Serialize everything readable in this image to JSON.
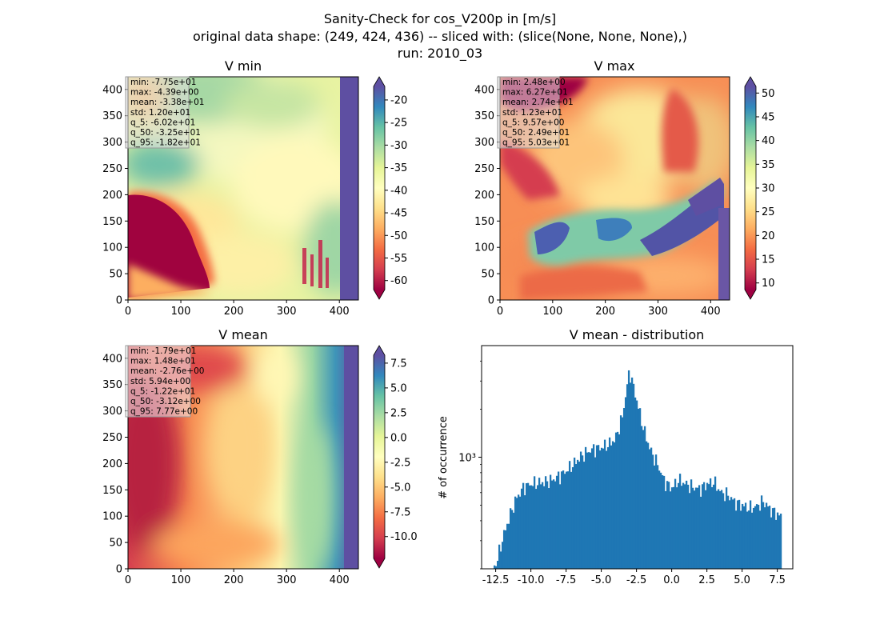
{
  "figure": {
    "title_lines": [
      "Sanity-Check for cos_V200p in [m/s]",
      "original data shape: (249, 424, 436) -- sliced with: (slice(None, None, None),)",
      "run: 2010_03"
    ]
  },
  "chart_data": [
    {
      "type": "heatmap",
      "title": "V min",
      "xlim": [
        0,
        436
      ],
      "ylim": [
        0,
        424
      ],
      "xticks": [
        "0",
        "100",
        "200",
        "300",
        "400"
      ],
      "yticks": [
        "0",
        "50",
        "100",
        "150",
        "200",
        "250",
        "300",
        "350",
        "400"
      ],
      "colormap": "Spectral",
      "colorbar": {
        "min": -62,
        "max": -17,
        "ticks": [
          "-60",
          "-55",
          "-50",
          "-45",
          "-40",
          "-35",
          "-30",
          "-25",
          "-20"
        ],
        "extend": "both"
      },
      "stats": [
        "min: -7.75e+01",
        "max: -4.39e+00",
        "mean: -3.38e+01",
        "std: 1.20e+01",
        "q_5: -6.02e+01",
        "q_50: -3.25e+01",
        "q_95: -1.82e+01"
      ]
    },
    {
      "type": "heatmap",
      "title": "V max",
      "xlim": [
        0,
        436
      ],
      "ylim": [
        0,
        424
      ],
      "xticks": [
        "0",
        "100",
        "200",
        "300",
        "400"
      ],
      "yticks": [
        "0",
        "50",
        "100",
        "150",
        "200",
        "250",
        "300",
        "350",
        "400"
      ],
      "colormap": "Spectral",
      "colorbar": {
        "min": 8.6,
        "max": 51.4,
        "ticks": [
          "10",
          "15",
          "20",
          "25",
          "30",
          "35",
          "40",
          "45",
          "50"
        ],
        "extend": "both"
      },
      "stats": [
        "min: 2.48e+00",
        "max: 6.27e+01",
        "mean: 2.74e+01",
        "std: 1.23e+01",
        "q_5: 9.57e+00",
        "q_50: 2.49e+01",
        "q_95: 5.03e+01"
      ]
    },
    {
      "type": "heatmap",
      "title": "V mean",
      "xlim": [
        0,
        436
      ],
      "ylim": [
        0,
        424
      ],
      "xticks": [
        "0",
        "100",
        "200",
        "300",
        "400"
      ],
      "yticks": [
        "0",
        "50",
        "100",
        "150",
        "200",
        "250",
        "300",
        "350",
        "400"
      ],
      "colormap": "Spectral",
      "colorbar": {
        "min": -12.2,
        "max": 8.3,
        "ticks": [
          "7.5",
          "5.0",
          "2.5",
          "0.0",
          "-2.5",
          "-5.0",
          "-7.5",
          "-10.0"
        ],
        "tick_values": [
          7.5,
          5.0,
          2.5,
          0.0,
          -2.5,
          -5.0,
          -7.5,
          -10.0
        ],
        "extend": "both"
      },
      "stats": [
        "min: -1.79e+01",
        "max: 1.48e+01",
        "mean: -2.76e+00",
        "std: 5.94e+00",
        "q_5: -1.22e+01",
        "q_50: -3.12e+00",
        "q_95: 7.77e+00"
      ]
    },
    {
      "type": "bar",
      "title": "V mean - distribution",
      "ylabel": "# of occurrence",
      "yscale": "log",
      "ylim": [
        200,
        5000
      ],
      "xlim": [
        -13.5,
        8.6
      ],
      "xticks": [
        "-12.5",
        "-10.0",
        "-7.5",
        "-5.0",
        "-2.5",
        "0.0",
        "2.5",
        "5.0",
        "7.5"
      ],
      "xtick_values": [
        -12.5,
        -10.0,
        -7.5,
        -5.0,
        -2.5,
        0.0,
        2.5,
        5.0,
        7.5
      ],
      "ytick_labels": [
        {
          "value": 1000,
          "label": "10³"
        }
      ],
      "bar_color": "#1f77b4",
      "x": [
        -12.5,
        -12.0,
        -11.5,
        -11.0,
        -10.5,
        -10.0,
        -9.5,
        -9.0,
        -8.5,
        -8.0,
        -7.5,
        -7.0,
        -6.5,
        -6.0,
        -5.5,
        -5.0,
        -4.5,
        -4.0,
        -3.5,
        -3.0,
        -2.5,
        -2.0,
        -1.5,
        -1.0,
        -0.5,
        0.0,
        0.5,
        1.0,
        1.5,
        2.0,
        2.5,
        3.0,
        3.5,
        4.0,
        4.5,
        5.0,
        5.5,
        6.0,
        6.5,
        7.0,
        7.5,
        7.8
      ],
      "values": [
        210,
        310,
        430,
        560,
        650,
        680,
        690,
        700,
        720,
        760,
        820,
        900,
        1000,
        1080,
        1130,
        1150,
        1200,
        1300,
        1800,
        3500,
        2300,
        1500,
        1100,
        900,
        700,
        640,
        720,
        680,
        650,
        630,
        680,
        700,
        600,
        580,
        520,
        500,
        480,
        490,
        530,
        470,
        440,
        420
      ]
    }
  ]
}
